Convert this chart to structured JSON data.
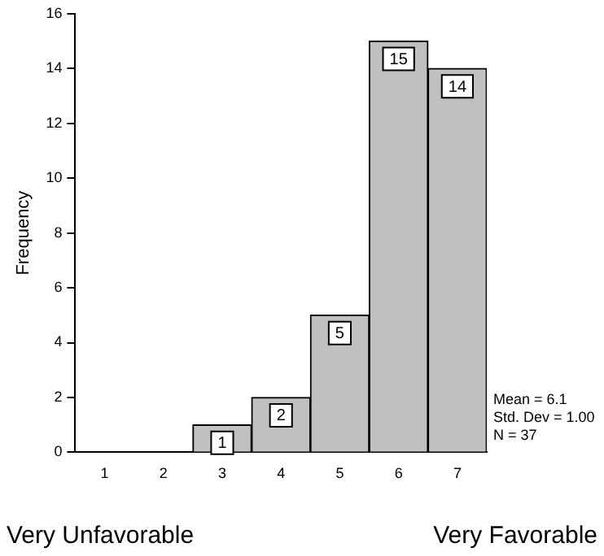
{
  "chart_data": {
    "type": "bar",
    "ylabel": "Frequency",
    "categories": [
      "1",
      "2",
      "3",
      "4",
      "5",
      "6",
      "7"
    ],
    "values": [
      0,
      0,
      1,
      2,
      5,
      15,
      14
    ],
    "value_labels": [
      null,
      null,
      "1",
      "2",
      "5",
      "15",
      "14"
    ],
    "color": "#c0c0c0",
    "ylim": [
      0,
      16
    ],
    "yticks": [
      0,
      2,
      4,
      6,
      8,
      10,
      12,
      14,
      16
    ],
    "grid": false,
    "annotations": [
      "Mean = 6.1",
      "Std. Dev = 1.00",
      "N = 37",
      "Very Unfavorable",
      "Very Favorable"
    ]
  }
}
